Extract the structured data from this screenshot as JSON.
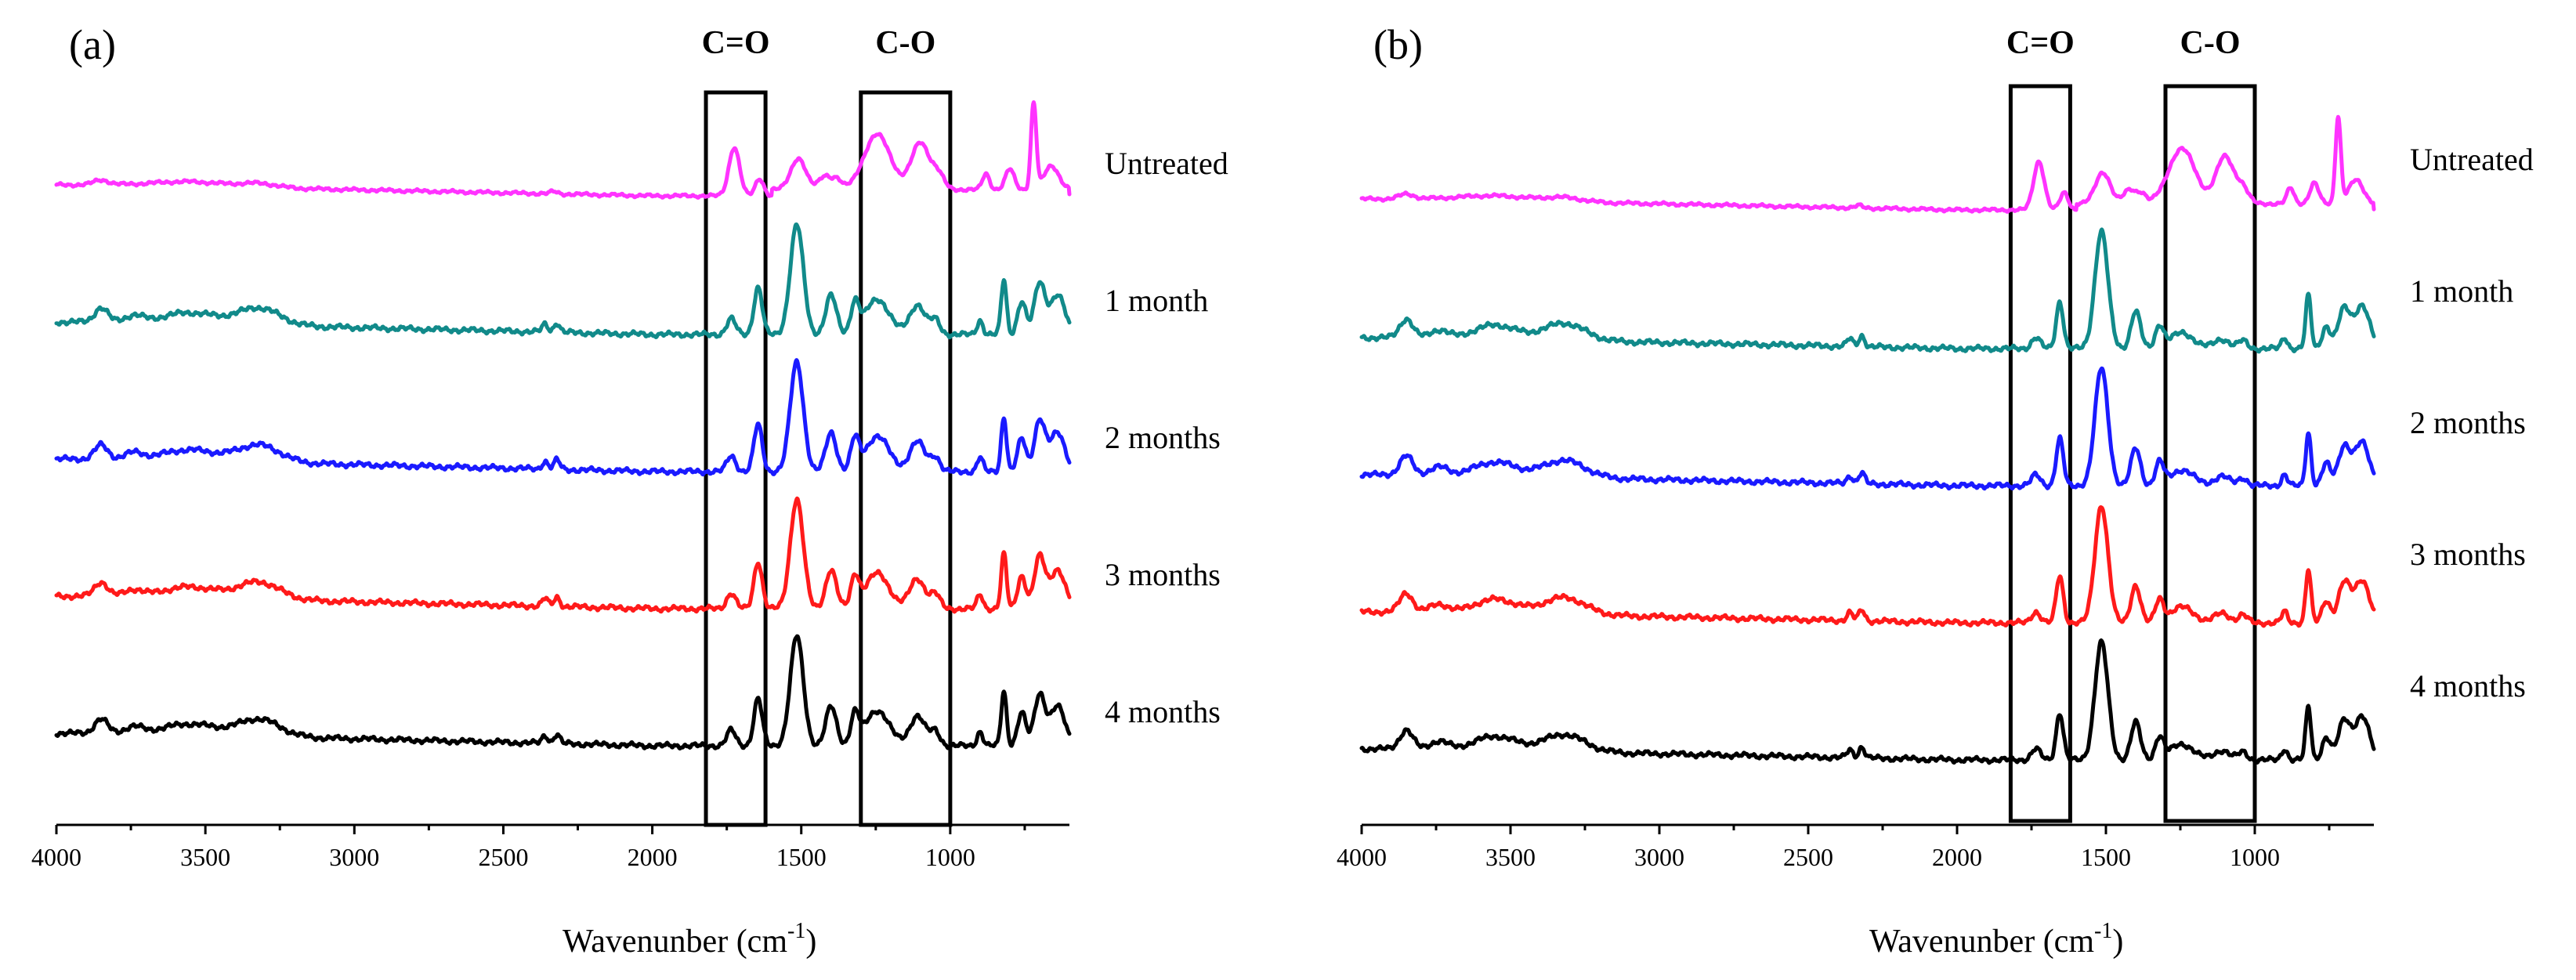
{
  "chart_data": [
    {
      "panel_label": "(a)",
      "type": "line",
      "xlabel": "Wavenunber (cm",
      "xlabel_sup": "-1",
      "xlabel_close": ")",
      "xlim": [
        4000,
        600
      ],
      "x_ticks": [
        "4000",
        "3500",
        "3000",
        "2500",
        "2000",
        "1500",
        "1000"
      ],
      "x_tick_values": [
        4000,
        3500,
        3000,
        2500,
        2000,
        1500,
        1000
      ],
      "regions": [
        {
          "label": "C=O",
          "x_from": 1820,
          "x_to": 1620
        },
        {
          "label": "C-O",
          "x_from": 1300,
          "x_to": 1000
        }
      ],
      "series": [
        {
          "name": "Untreated",
          "color": "#ff33ff",
          "baseline": 0.0,
          "profile": "untreated"
        },
        {
          "name": "1 month",
          "color": "#118a8a",
          "baseline": 1.0,
          "profile": "aged_a"
        },
        {
          "name": "2 months",
          "color": "#1a1aff",
          "baseline": 2.0,
          "profile": "aged_a"
        },
        {
          "name": "3 months",
          "color": "#ff1a1a",
          "baseline": 3.0,
          "profile": "aged_a"
        },
        {
          "name": "4 months",
          "color": "#000000",
          "baseline": 4.0,
          "profile": "aged_a"
        }
      ]
    },
    {
      "panel_label": "(b)",
      "type": "line",
      "xlabel": "Wavenunber (cm",
      "xlabel_sup": "-1",
      "xlabel_close": ")",
      "xlim": [
        4000,
        600
      ],
      "x_ticks": [
        "4000",
        "3500",
        "3000",
        "2500",
        "2000",
        "1500",
        "1000"
      ],
      "x_tick_values": [
        4000,
        3500,
        3000,
        2500,
        2000,
        1500,
        1000
      ],
      "regions": [
        {
          "label": "C=O",
          "x_from": 1820,
          "x_to": 1620
        },
        {
          "label": "C-O",
          "x_from": 1300,
          "x_to": 1000
        }
      ],
      "series": [
        {
          "name": "Untreated",
          "color": "#ff33ff",
          "baseline": 0.0,
          "profile": "untreated"
        },
        {
          "name": "1 month",
          "color": "#118a8a",
          "baseline": 1.0,
          "profile": "aged_b"
        },
        {
          "name": "2 months",
          "color": "#1a1aff",
          "baseline": 2.0,
          "profile": "aged_b"
        },
        {
          "name": "3 months",
          "color": "#ff1a1a",
          "baseline": 3.0,
          "profile": "aged_b"
        },
        {
          "name": "4 months",
          "color": "#000000",
          "baseline": 4.0,
          "profile": "aged_b"
        }
      ]
    }
  ]
}
